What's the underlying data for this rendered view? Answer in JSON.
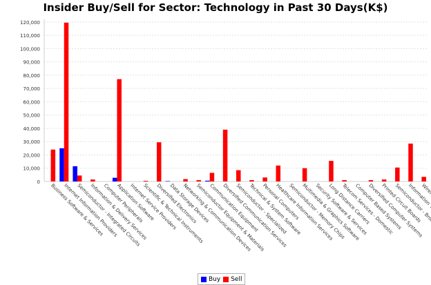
{
  "chart_data": {
    "type": "bar",
    "title": "Insider Buy/Sell for Sector: Technology in Past 30 Days(K$)",
    "xlabel": "",
    "ylabel": "",
    "ylim": [
      0,
      122000
    ],
    "yticks": [
      0,
      10000,
      20000,
      30000,
      40000,
      50000,
      60000,
      70000,
      80000,
      90000,
      100000,
      110000,
      120000
    ],
    "ytick_labels": [
      "0",
      "10,000",
      "20,000",
      "30,000",
      "40,000",
      "50,000",
      "60,000",
      "70,000",
      "80,000",
      "90,000",
      "100,000",
      "110,000",
      "120,000"
    ],
    "grid": true,
    "legend_position": "bottom-center",
    "categories": [
      "Business Software & Services",
      "Internet Information Providers",
      "Semiconductor - Integrated Circuits",
      "Information & Delivery Services",
      "Computer Peripherals",
      "Application Software",
      "Internet Service Providers",
      "Scientific & Technical Instruments",
      "Diversified Electronics",
      "Data Storage Devices",
      "Networking & Communication Devices",
      "Semiconductor Equipment & Materials",
      "Communication Equipment",
      "Diversified Communication Services",
      "Semiconductor - Specialized",
      "Technical & System Software",
      "Personal Computers",
      "Healthcare Information Services",
      "Semiconductor - Memory Chips",
      "Multimedia & Graphics Software",
      "Security Software & Services",
      "Long Distance Carriers",
      "Telecom Services - Domestic",
      "Computer Based Systems",
      "Diversified Computer Systems",
      "Printed Circuit Boards",
      "Semiconductor - Broad Line",
      "Information Technology Services",
      "Wireless Communications"
    ],
    "series": [
      {
        "name": "Buy",
        "color": "#0000ff",
        "values": [
          0,
          25000,
          11500,
          0,
          0,
          2800,
          0,
          0,
          0,
          300,
          0,
          0,
          600,
          0,
          0,
          0,
          0,
          0,
          0,
          0,
          0,
          0,
          0,
          0,
          0,
          0,
          0,
          0,
          0
        ]
      },
      {
        "name": "Sell",
        "color": "#ff0000",
        "values": [
          24000,
          119500,
          4500,
          1500,
          0,
          77000,
          0,
          500,
          29500,
          0,
          1800,
          1000,
          6500,
          39000,
          8500,
          1000,
          3000,
          12000,
          0,
          10000,
          0,
          15500,
          1000,
          0,
          1000,
          1500,
          10500,
          28500,
          3500
        ]
      }
    ]
  }
}
